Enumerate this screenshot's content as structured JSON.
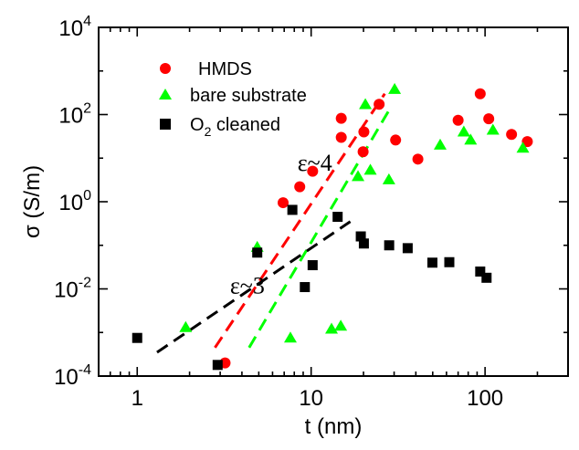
{
  "chart_data": {
    "type": "scatter",
    "xlabel": "t (nm)",
    "ylabel": "σ (S/m)",
    "x_scale": "log",
    "y_scale": "log",
    "xlim": [
      0.6,
      300
    ],
    "ylim": [
      0.0001,
      10000
    ],
    "x_ticks": [
      {
        "value": 1,
        "label": "1"
      },
      {
        "value": 10,
        "label": "10"
      },
      {
        "value": 100,
        "label": "100"
      }
    ],
    "y_ticks": [
      {
        "value": 0.0001,
        "base": "10",
        "exp": "-4"
      },
      {
        "value": 0.01,
        "base": "10",
        "exp": "-2"
      },
      {
        "value": 1,
        "base": "10",
        "exp": "0"
      },
      {
        "value": 100,
        "base": "10",
        "exp": "2"
      },
      {
        "value": 10000,
        "base": "10",
        "exp": "4"
      }
    ],
    "grid": false,
    "legend_position": "top-left",
    "series": [
      {
        "name": "HMDS",
        "legend_label": "HMDS",
        "marker": "circle",
        "color": "#ff0000",
        "points": [
          [
            3.2,
            0.0002
          ],
          [
            6.9,
            0.95
          ],
          [
            8.6,
            2.2
          ],
          [
            10.2,
            5.0
          ],
          [
            14.9,
            82
          ],
          [
            14.9,
            30
          ],
          [
            19.9,
            14
          ],
          [
            20.1,
            40
          ],
          [
            24.6,
            172
          ],
          [
            30.6,
            26
          ],
          [
            41.1,
            9.5
          ],
          [
            70,
            74
          ],
          [
            93.8,
            300
          ],
          [
            105,
            80
          ],
          [
            142,
            35
          ],
          [
            175,
            24
          ]
        ]
      },
      {
        "name": "bare substrate",
        "legend_label": "bare substrate",
        "marker": "triangle",
        "color": "#00ff00",
        "points": [
          [
            1.9,
            0.0013
          ],
          [
            4.9,
            0.09
          ],
          [
            7.6,
            0.00075
          ],
          [
            13.1,
            0.0012
          ],
          [
            14.8,
            0.0014
          ],
          [
            18.6,
            3.8
          ],
          [
            20.5,
            170
          ],
          [
            21.9,
            5.3
          ],
          [
            28,
            3.2
          ],
          [
            30.2,
            380
          ],
          [
            55.2,
            20
          ],
          [
            75.5,
            40
          ],
          [
            82.6,
            26
          ],
          [
            111,
            44
          ],
          [
            165,
            17
          ]
        ]
      },
      {
        "name": "O2 cleaned",
        "legend_label_main": "O",
        "legend_label_sub": "2",
        "legend_label_rest": " cleaned",
        "marker": "square",
        "color": "#000000",
        "points": [
          [
            1,
            0.00075
          ],
          [
            2.9,
            0.00018
          ],
          [
            4.9,
            0.068
          ],
          [
            7.8,
            0.65
          ],
          [
            9.2,
            0.011
          ],
          [
            10.2,
            0.035
          ],
          [
            14.2,
            0.45
          ],
          [
            19.3,
            0.16
          ],
          [
            20.1,
            0.11
          ],
          [
            28.1,
            0.1
          ],
          [
            35.9,
            0.086
          ],
          [
            49.8,
            0.04
          ],
          [
            62.3,
            0.041
          ],
          [
            93.8,
            0.025
          ],
          [
            102,
            0.018
          ]
        ]
      }
    ],
    "fit_lines": [
      {
        "color": "#ff0000",
        "from": [
          2.8,
          0.00045
        ],
        "to": [
          26.5,
          300
        ]
      },
      {
        "color": "#00ff00",
        "from": [
          4.4,
          0.00045
        ],
        "to": [
          28.5,
          140
        ]
      },
      {
        "color": "#000000",
        "from": [
          1.3,
          0.00035
        ],
        "to": [
          16.8,
          0.35
        ]
      }
    ],
    "annotations": [
      {
        "text": "ε~4",
        "x": 10.5,
        "y": 5.2
      },
      {
        "text": "ε~3",
        "x": 4.3,
        "y": 0.0078
      }
    ]
  }
}
